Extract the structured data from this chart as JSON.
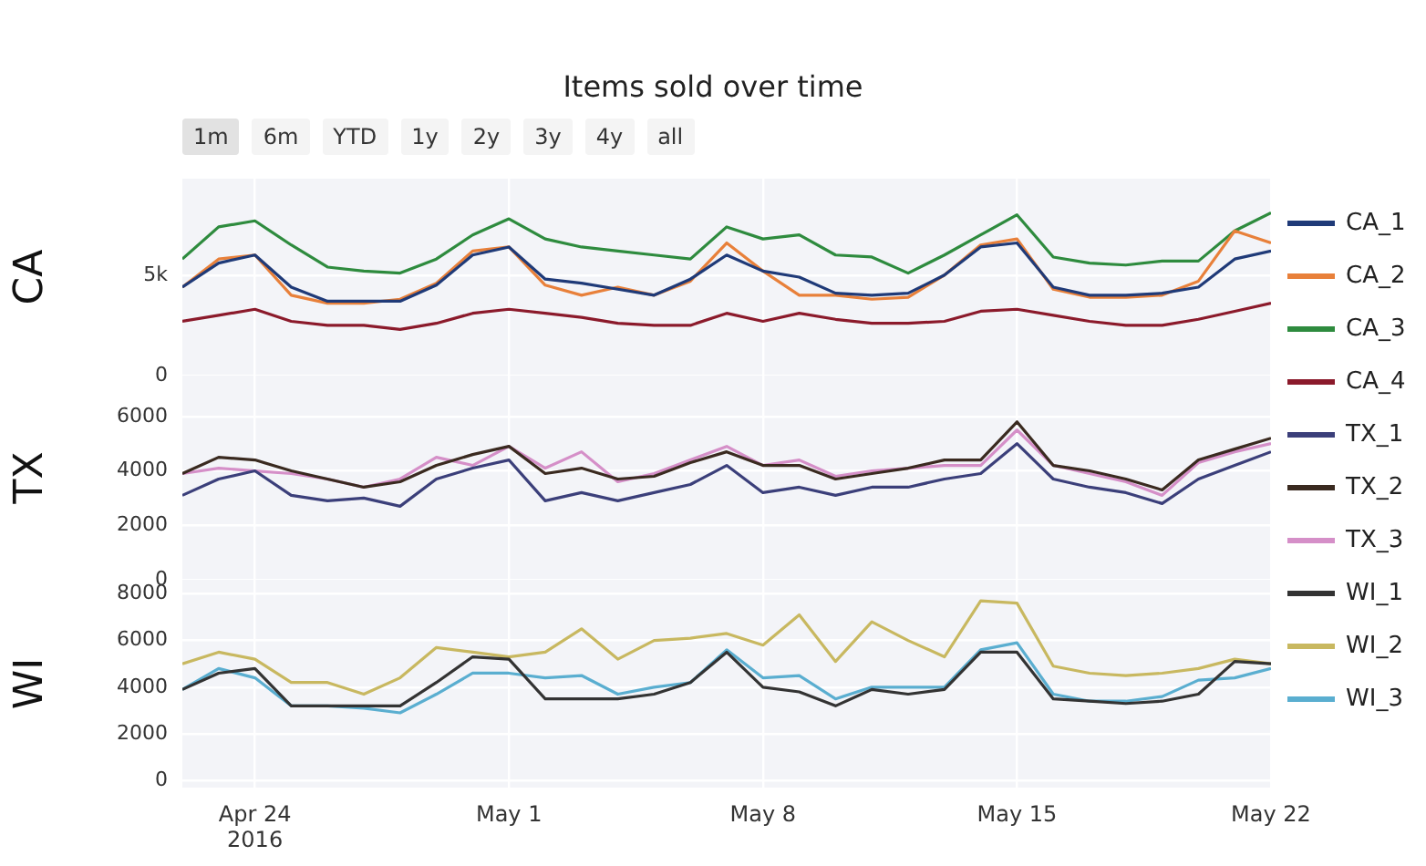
{
  "chart_data": [
    {
      "type": "line",
      "title": "Items sold over time",
      "ylabel": "CA",
      "annotations": [
        "1m",
        "6m",
        "YTD",
        "1y",
        "2y",
        "3y",
        "4y",
        "all"
      ],
      "grid": true,
      "legend": "right",
      "tick_labels": "y",
      "x": [
        "2016-04-22",
        "2016-04-23",
        "2016-04-24",
        "2016-04-25",
        "2016-04-26",
        "2016-04-27",
        "2016-04-28",
        "2016-04-29",
        "2016-04-30",
        "2016-05-01",
        "2016-05-02",
        "2016-05-03",
        "2016-05-04",
        "2016-05-05",
        "2016-05-06",
        "2016-05-07",
        "2016-05-08",
        "2016-05-09",
        "2016-05-10",
        "2016-05-11",
        "2016-05-12",
        "2016-05-13",
        "2016-05-14",
        "2016-05-15",
        "2016-05-16",
        "2016-05-17",
        "2016-05-18",
        "2016-05-19",
        "2016-05-20",
        "2016-05-21",
        "2016-05-22"
      ],
      "xlim": [
        "2016-04-22",
        "2016-05-22"
      ],
      "xticks": [
        {
          "value": "2016-04-24",
          "label": null
        },
        {
          "value": "2016-05-01",
          "label": null
        },
        {
          "value": "2016-05-08",
          "label": null
        },
        {
          "value": "2016-05-15",
          "label": null
        },
        {
          "value": "2016-05-22",
          "label": null
        }
      ],
      "ylim": [
        0,
        9800
      ],
      "yticks": [
        0,
        {
          "value": 5000,
          "label": "5k"
        }
      ],
      "series": [
        {
          "name": "CA_1",
          "color": "#1f3a78",
          "values": [
            4400,
            5600,
            6000,
            4400,
            3700,
            3700,
            3700,
            4500,
            6000,
            6400,
            4800,
            4600,
            4300,
            4000,
            4800,
            6000,
            5200,
            4900,
            4100,
            4000,
            4100,
            5000,
            6400,
            6600,
            4400,
            4000,
            4000,
            4100,
            4400,
            5800,
            6200
          ]
        },
        {
          "name": "CA_2",
          "color": "#e8803a",
          "values": [
            4400,
            5800,
            6000,
            4000,
            3600,
            3600,
            3800,
            4600,
            6200,
            6400,
            4500,
            4000,
            4400,
            4000,
            4700,
            6600,
            5200,
            4000,
            4000,
            3800,
            3900,
            5000,
            6500,
            6800,
            4300,
            3900,
            3900,
            4000,
            4700,
            7200,
            6600
          ]
        },
        {
          "name": "CA_3",
          "color": "#2e8b3e",
          "values": [
            5800,
            7400,
            7700,
            6500,
            5400,
            5200,
            5100,
            5800,
            7000,
            7800,
            6800,
            6400,
            6200,
            6000,
            5800,
            7400,
            6800,
            7000,
            6000,
            5900,
            5100,
            6000,
            7000,
            8000,
            5900,
            5600,
            5500,
            5700,
            5700,
            7200,
            8100
          ]
        },
        {
          "name": "CA_4",
          "color": "#8b1a2b",
          "values": [
            2700,
            3000,
            3300,
            2700,
            2500,
            2500,
            2300,
            2600,
            3100,
            3300,
            3100,
            2900,
            2600,
            2500,
            2500,
            3100,
            2700,
            3100,
            2800,
            2600,
            2600,
            2700,
            3200,
            3300,
            3000,
            2700,
            2500,
            2500,
            2800,
            3200,
            3600
          ]
        }
      ]
    },
    {
      "type": "line",
      "ylabel": "TX",
      "grid": true,
      "legend": "right",
      "tick_labels": "y",
      "x": [
        "2016-04-22",
        "2016-04-23",
        "2016-04-24",
        "2016-04-25",
        "2016-04-26",
        "2016-04-27",
        "2016-04-28",
        "2016-04-29",
        "2016-04-30",
        "2016-05-01",
        "2016-05-02",
        "2016-05-03",
        "2016-05-04",
        "2016-05-05",
        "2016-05-06",
        "2016-05-07",
        "2016-05-08",
        "2016-05-09",
        "2016-05-10",
        "2016-05-11",
        "2016-05-12",
        "2016-05-13",
        "2016-05-14",
        "2016-05-15",
        "2016-05-16",
        "2016-05-17",
        "2016-05-18",
        "2016-05-19",
        "2016-05-20",
        "2016-05-21",
        "2016-05-22"
      ],
      "xlim": [
        "2016-04-22",
        "2016-05-22"
      ],
      "xticks": [
        {
          "value": "2016-04-24",
          "label": null
        },
        {
          "value": "2016-05-01",
          "label": null
        },
        {
          "value": "2016-05-08",
          "label": null
        },
        {
          "value": "2016-05-15",
          "label": null
        },
        {
          "value": "2016-05-22",
          "label": null
        }
      ],
      "ylim": [
        0,
        7500
      ],
      "yticks": [
        0,
        2000,
        4000,
        6000
      ],
      "series": [
        {
          "name": "TX_1",
          "color": "#3b3f7a",
          "values": [
            3100,
            3700,
            4000,
            3100,
            2900,
            3000,
            2700,
            3700,
            4100,
            4400,
            2900,
            3200,
            2900,
            3200,
            3500,
            4200,
            3200,
            3400,
            3100,
            3400,
            3400,
            3700,
            3900,
            5000,
            3700,
            3400,
            3200,
            2800,
            3700,
            4200,
            4700
          ]
        },
        {
          "name": "TX_2",
          "color": "#3a2a20",
          "values": [
            3900,
            4500,
            4400,
            4000,
            3700,
            3400,
            3600,
            4200,
            4600,
            4900,
            3900,
            4100,
            3700,
            3800,
            4300,
            4700,
            4200,
            4200,
            3700,
            3900,
            4100,
            4400,
            4400,
            5800,
            4200,
            4000,
            3700,
            3300,
            4400,
            4800,
            5200
          ]
        },
        {
          "name": "TX_3",
          "color": "#d58fc8",
          "values": [
            3900,
            4100,
            4000,
            3900,
            3700,
            3400,
            3700,
            4500,
            4200,
            4900,
            4100,
            4700,
            3600,
            3900,
            4400,
            4900,
            4200,
            4400,
            3800,
            4000,
            4100,
            4200,
            4200,
            5500,
            4200,
            3900,
            3600,
            3100,
            4300,
            4700,
            5000
          ]
        }
      ]
    },
    {
      "type": "line",
      "ylabel": "WI",
      "grid": true,
      "legend": "right",
      "x": [
        "2016-04-22",
        "2016-04-23",
        "2016-04-24",
        "2016-04-25",
        "2016-04-26",
        "2016-04-27",
        "2016-04-28",
        "2016-04-29",
        "2016-04-30",
        "2016-05-01",
        "2016-05-02",
        "2016-05-03",
        "2016-05-04",
        "2016-05-05",
        "2016-05-06",
        "2016-05-07",
        "2016-05-08",
        "2016-05-09",
        "2016-05-10",
        "2016-05-11",
        "2016-05-12",
        "2016-05-13",
        "2016-05-14",
        "2016-05-15",
        "2016-05-16",
        "2016-05-17",
        "2016-05-18",
        "2016-05-19",
        "2016-05-20",
        "2016-05-21",
        "2016-05-22"
      ],
      "xlim": [
        "2016-04-22",
        "2016-05-22"
      ],
      "xticks": [
        {
          "value": "2016-04-24",
          "label": "Apr 24\n2016"
        },
        {
          "value": "2016-05-01",
          "label": "May 1"
        },
        {
          "value": "2016-05-08",
          "label": "May 8"
        },
        {
          "value": "2016-05-15",
          "label": "May 15"
        },
        {
          "value": "2016-05-22",
          "label": "May 22"
        }
      ],
      "ylim": [
        -300,
        8600
      ],
      "yticks": [
        0,
        2000,
        4000,
        6000,
        8000
      ],
      "series": [
        {
          "name": "WI_1",
          "color": "#333333",
          "values": [
            3900,
            4600,
            4800,
            3200,
            3200,
            3200,
            3200,
            4200,
            5300,
            5200,
            3500,
            3500,
            3500,
            3700,
            4200,
            5500,
            4000,
            3800,
            3200,
            3900,
            3700,
            3900,
            5500,
            5500,
            3500,
            3400,
            3300,
            3400,
            3700,
            5100,
            5000
          ]
        },
        {
          "name": "WI_2",
          "color": "#c8b860",
          "values": [
            5000,
            5500,
            5200,
            4200,
            4200,
            3700,
            4400,
            5700,
            5500,
            5300,
            5500,
            6500,
            5200,
            6000,
            6100,
            6300,
            5800,
            7100,
            5100,
            6800,
            6000,
            5300,
            7700,
            7600,
            4900,
            4600,
            4500,
            4600,
            4800,
            5200,
            5000
          ]
        },
        {
          "name": "WI_3",
          "color": "#5aaed0",
          "values": [
            3900,
            4800,
            4400,
            3200,
            3200,
            3100,
            2900,
            3700,
            4600,
            4600,
            4400,
            4500,
            3700,
            4000,
            4200,
            5600,
            4400,
            4500,
            3500,
            4000,
            4000,
            4000,
            5600,
            5900,
            3700,
            3400,
            3400,
            3600,
            4300,
            4400,
            4800
          ]
        }
      ]
    }
  ]
}
